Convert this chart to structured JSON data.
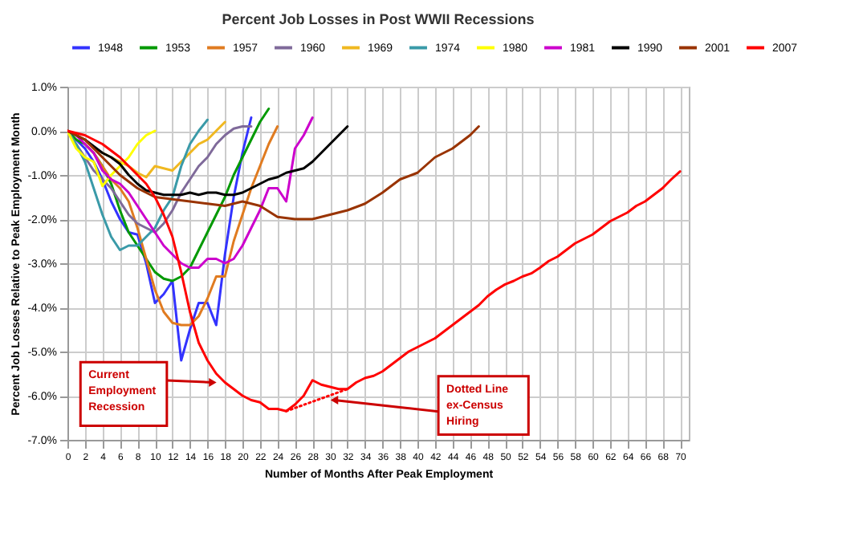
{
  "chart_data": {
    "type": "line",
    "title": "Percent Job Losses in Post WWII Recessions",
    "xlabel": "Number of Months After Peak Employment",
    "ylabel": "Percent Job Losses Relative to Peak Employment Month",
    "xlim": [
      0,
      71
    ],
    "xticks": [
      0,
      2,
      4,
      6,
      8,
      10,
      12,
      14,
      16,
      18,
      20,
      22,
      24,
      26,
      28,
      30,
      32,
      34,
      36,
      38,
      40,
      42,
      44,
      46,
      48,
      50,
      52,
      54,
      56,
      58,
      60,
      62,
      64,
      66,
      68,
      70
    ],
    "ylim": [
      -7,
      1
    ],
    "yticks": [
      {
        "value": 1,
        "label": "1.0%"
      },
      {
        "value": 0,
        "label": "0.0%"
      },
      {
        "value": -1,
        "label": "-1.0%"
      },
      {
        "value": -2,
        "label": "-2.0%"
      },
      {
        "value": -3,
        "label": "-3.0%"
      },
      {
        "value": -4,
        "label": "-4.0%"
      },
      {
        "value": -5,
        "label": "-5.0%"
      },
      {
        "value": -6,
        "label": "-6.0%"
      },
      {
        "value": -7,
        "label": "-7.0%"
      }
    ],
    "grid": true,
    "legend": "top",
    "marker": "none",
    "line_style": "solid",
    "annotations": [
      {
        "text": "Current Employment Recession",
        "x": 16.6,
        "y": -5.7
      },
      {
        "text": "Dotted Line ex-Census Hiring",
        "x": 30.5,
        "y": -6.1
      }
    ],
    "series": [
      {
        "name": "1948",
        "color": "#3333ff",
        "x": [
          0,
          1,
          2,
          3,
          4,
          5,
          6,
          7,
          8,
          9,
          10,
          11,
          12,
          13,
          14,
          15,
          16,
          17,
          18,
          19,
          20,
          21
        ],
        "values": [
          0,
          -0.2,
          -0.4,
          -0.7,
          -1.1,
          -1.6,
          -2.0,
          -2.3,
          -2.35,
          -3.0,
          -3.9,
          -3.7,
          -3.4,
          -5.2,
          -4.5,
          -3.9,
          -3.9,
          -4.4,
          -2.8,
          -1.5,
          -0.5,
          0.3
        ]
      },
      {
        "name": "1953",
        "color": "#009900",
        "x": [
          0,
          1,
          2,
          3,
          4,
          5,
          6,
          7,
          8,
          9,
          10,
          11,
          12,
          13,
          14,
          15,
          16,
          17,
          18,
          19,
          20,
          21,
          22,
          23
        ],
        "values": [
          0,
          -0.2,
          -0.3,
          -0.5,
          -0.8,
          -1.2,
          -1.8,
          -2.3,
          -2.6,
          -2.9,
          -3.2,
          -3.35,
          -3.4,
          -3.3,
          -3.1,
          -2.7,
          -2.3,
          -1.9,
          -1.5,
          -1.0,
          -0.6,
          -0.2,
          0.2,
          0.5
        ]
      },
      {
        "name": "1957",
        "color": "#e07b20",
        "x": [
          2,
          3,
          4,
          5,
          6,
          7,
          8,
          9,
          10,
          11,
          12,
          13,
          14,
          15,
          16,
          17,
          18,
          19,
          20,
          21,
          22,
          23,
          24
        ],
        "values": [
          -0.3,
          -0.5,
          -0.8,
          -1.1,
          -1.3,
          -1.6,
          -2.2,
          -2.9,
          -3.6,
          -4.1,
          -4.35,
          -4.4,
          -4.4,
          -4.2,
          -3.8,
          -3.3,
          -3.3,
          -2.5,
          -1.9,
          -1.3,
          -0.8,
          -0.3,
          0.1
        ]
      },
      {
        "name": "1960",
        "color": "#7f6a9a",
        "x": [
          0,
          1,
          2,
          3,
          4,
          5,
          6,
          7,
          8,
          9,
          10,
          11,
          12,
          13,
          14,
          15,
          16,
          17,
          18,
          19,
          20,
          21
        ],
        "values": [
          0,
          -0.3,
          -0.6,
          -0.9,
          -1.1,
          -1.3,
          -1.6,
          -1.9,
          -2.1,
          -2.2,
          -2.3,
          -2.1,
          -1.8,
          -1.4,
          -1.1,
          -0.8,
          -0.6,
          -0.3,
          -0.1,
          0.05,
          0.1,
          0.1
        ]
      },
      {
        "name": "1969",
        "color": "#f0b820",
        "x": [
          0,
          1,
          2,
          3,
          4,
          5,
          6,
          7,
          8,
          9,
          10,
          11,
          12,
          13,
          14,
          15,
          16,
          17,
          18
        ],
        "values": [
          0,
          -0.1,
          -0.2,
          -0.4,
          -0.5,
          -0.6,
          -0.7,
          -0.8,
          -0.95,
          -1.05,
          -0.8,
          -0.85,
          -0.9,
          -0.7,
          -0.5,
          -0.3,
          -0.2,
          0.0,
          0.2
        ]
      },
      {
        "name": "1974",
        "color": "#3a9aa8",
        "x": [
          0,
          1,
          2,
          3,
          4,
          5,
          6,
          7,
          8,
          9,
          10,
          11,
          12,
          13,
          14,
          15,
          16
        ],
        "values": [
          0,
          -0.3,
          -0.7,
          -1.3,
          -1.9,
          -2.4,
          -2.7,
          -2.6,
          -2.6,
          -2.4,
          -2.2,
          -1.8,
          -1.5,
          -0.8,
          -0.3,
          0.0,
          0.25
        ]
      },
      {
        "name": "1980",
        "color": "#ffff00",
        "x": [
          0,
          1,
          2,
          3,
          4,
          5,
          6,
          7,
          8,
          9,
          10
        ],
        "values": [
          0,
          -0.4,
          -0.6,
          -0.7,
          -1.25,
          -1.0,
          -0.8,
          -0.6,
          -0.3,
          -0.1,
          0.0
        ]
      },
      {
        "name": "1981",
        "color": "#cc00cc",
        "x": [
          0,
          1,
          2,
          3,
          4,
          5,
          6,
          7,
          8,
          9,
          10,
          11,
          12,
          13,
          14,
          15,
          16,
          17,
          18,
          19,
          20,
          21,
          22,
          23,
          24,
          25,
          26,
          27,
          28
        ],
        "values": [
          0,
          -0.1,
          -0.3,
          -0.5,
          -0.9,
          -1.1,
          -1.2,
          -1.4,
          -1.7,
          -2.0,
          -2.3,
          -2.6,
          -2.8,
          -3.0,
          -3.1,
          -3.1,
          -2.9,
          -2.9,
          -3.0,
          -2.9,
          -2.6,
          -2.2,
          -1.8,
          -1.3,
          -1.3,
          -1.6,
          -0.4,
          -0.1,
          0.3
        ]
      },
      {
        "name": "1990",
        "color": "#000000",
        "x": [
          0,
          1,
          2,
          3,
          4,
          5,
          6,
          7,
          8,
          9,
          10,
          11,
          12,
          13,
          14,
          15,
          16,
          17,
          18,
          19,
          20,
          21,
          22,
          23,
          24,
          25,
          26,
          27,
          28,
          29,
          30,
          31,
          32
        ],
        "values": [
          0,
          -0.1,
          -0.2,
          -0.35,
          -0.5,
          -0.6,
          -0.75,
          -1.0,
          -1.2,
          -1.35,
          -1.4,
          -1.45,
          -1.45,
          -1.45,
          -1.4,
          -1.45,
          -1.4,
          -1.4,
          -1.45,
          -1.45,
          -1.4,
          -1.3,
          -1.2,
          -1.1,
          -1.05,
          -0.95,
          -0.9,
          -0.85,
          -0.7,
          -0.5,
          -0.3,
          -0.1,
          0.1
        ]
      },
      {
        "name": "2001",
        "color": "#993300",
        "x": [
          0,
          2,
          4,
          6,
          8,
          10,
          12,
          14,
          16,
          18,
          20,
          22,
          24,
          26,
          28,
          30,
          32,
          34,
          36,
          38,
          40,
          42,
          44,
          46,
          47
        ],
        "values": [
          0,
          -0.2,
          -0.6,
          -1.0,
          -1.3,
          -1.5,
          -1.55,
          -1.6,
          -1.65,
          -1.7,
          -1.6,
          -1.7,
          -1.95,
          -2.0,
          -2.0,
          -1.9,
          -1.8,
          -1.65,
          -1.4,
          -1.1,
          -0.95,
          -0.6,
          -0.4,
          -0.1,
          0.1
        ]
      },
      {
        "name": "2007",
        "color": "#ff0000",
        "x": [
          0,
          1,
          2,
          3,
          4,
          5,
          6,
          7,
          8,
          9,
          10,
          11,
          12,
          13,
          14,
          15,
          16,
          17,
          18,
          19,
          20,
          21,
          22,
          23,
          24,
          25,
          26,
          27,
          28,
          29,
          30,
          31,
          32,
          33,
          34,
          35,
          36,
          37,
          38,
          39,
          40,
          41,
          42,
          43,
          44,
          45,
          46,
          47,
          48,
          49,
          50,
          51,
          52,
          53,
          54,
          55,
          56,
          57,
          58,
          59,
          60,
          61,
          62,
          63,
          64,
          65,
          66,
          67,
          68,
          69,
          70
        ],
        "values": [
          0,
          -0.05,
          -0.1,
          -0.2,
          -0.3,
          -0.45,
          -0.6,
          -0.8,
          -1.0,
          -1.2,
          -1.5,
          -1.9,
          -2.4,
          -3.2,
          -4.1,
          -4.8,
          -5.2,
          -5.5,
          -5.7,
          -5.85,
          -6.0,
          -6.1,
          -6.15,
          -6.3,
          -6.3,
          -6.35,
          -6.2,
          -6.0,
          -5.65,
          -5.75,
          -5.8,
          -5.85,
          -5.85,
          -5.7,
          -5.6,
          -5.55,
          -5.45,
          -5.3,
          -5.15,
          -5.0,
          -4.9,
          -4.8,
          -4.7,
          -4.55,
          -4.4,
          -4.25,
          -4.1,
          -3.95,
          -3.75,
          -3.6,
          -3.48,
          -3.4,
          -3.3,
          -3.23,
          -3.1,
          -2.95,
          -2.85,
          -2.7,
          -2.55,
          -2.45,
          -2.35,
          -2.2,
          -2.05,
          -1.95,
          -1.85,
          -1.7,
          -1.6,
          -1.45,
          -1.3,
          -1.1,
          -0.92
        ]
      },
      {
        "color": "#ff0000",
        "line_style": "dotted",
        "x": [
          25,
          32
        ],
        "values": [
          -6.35,
          -5.85
        ]
      }
    ]
  }
}
